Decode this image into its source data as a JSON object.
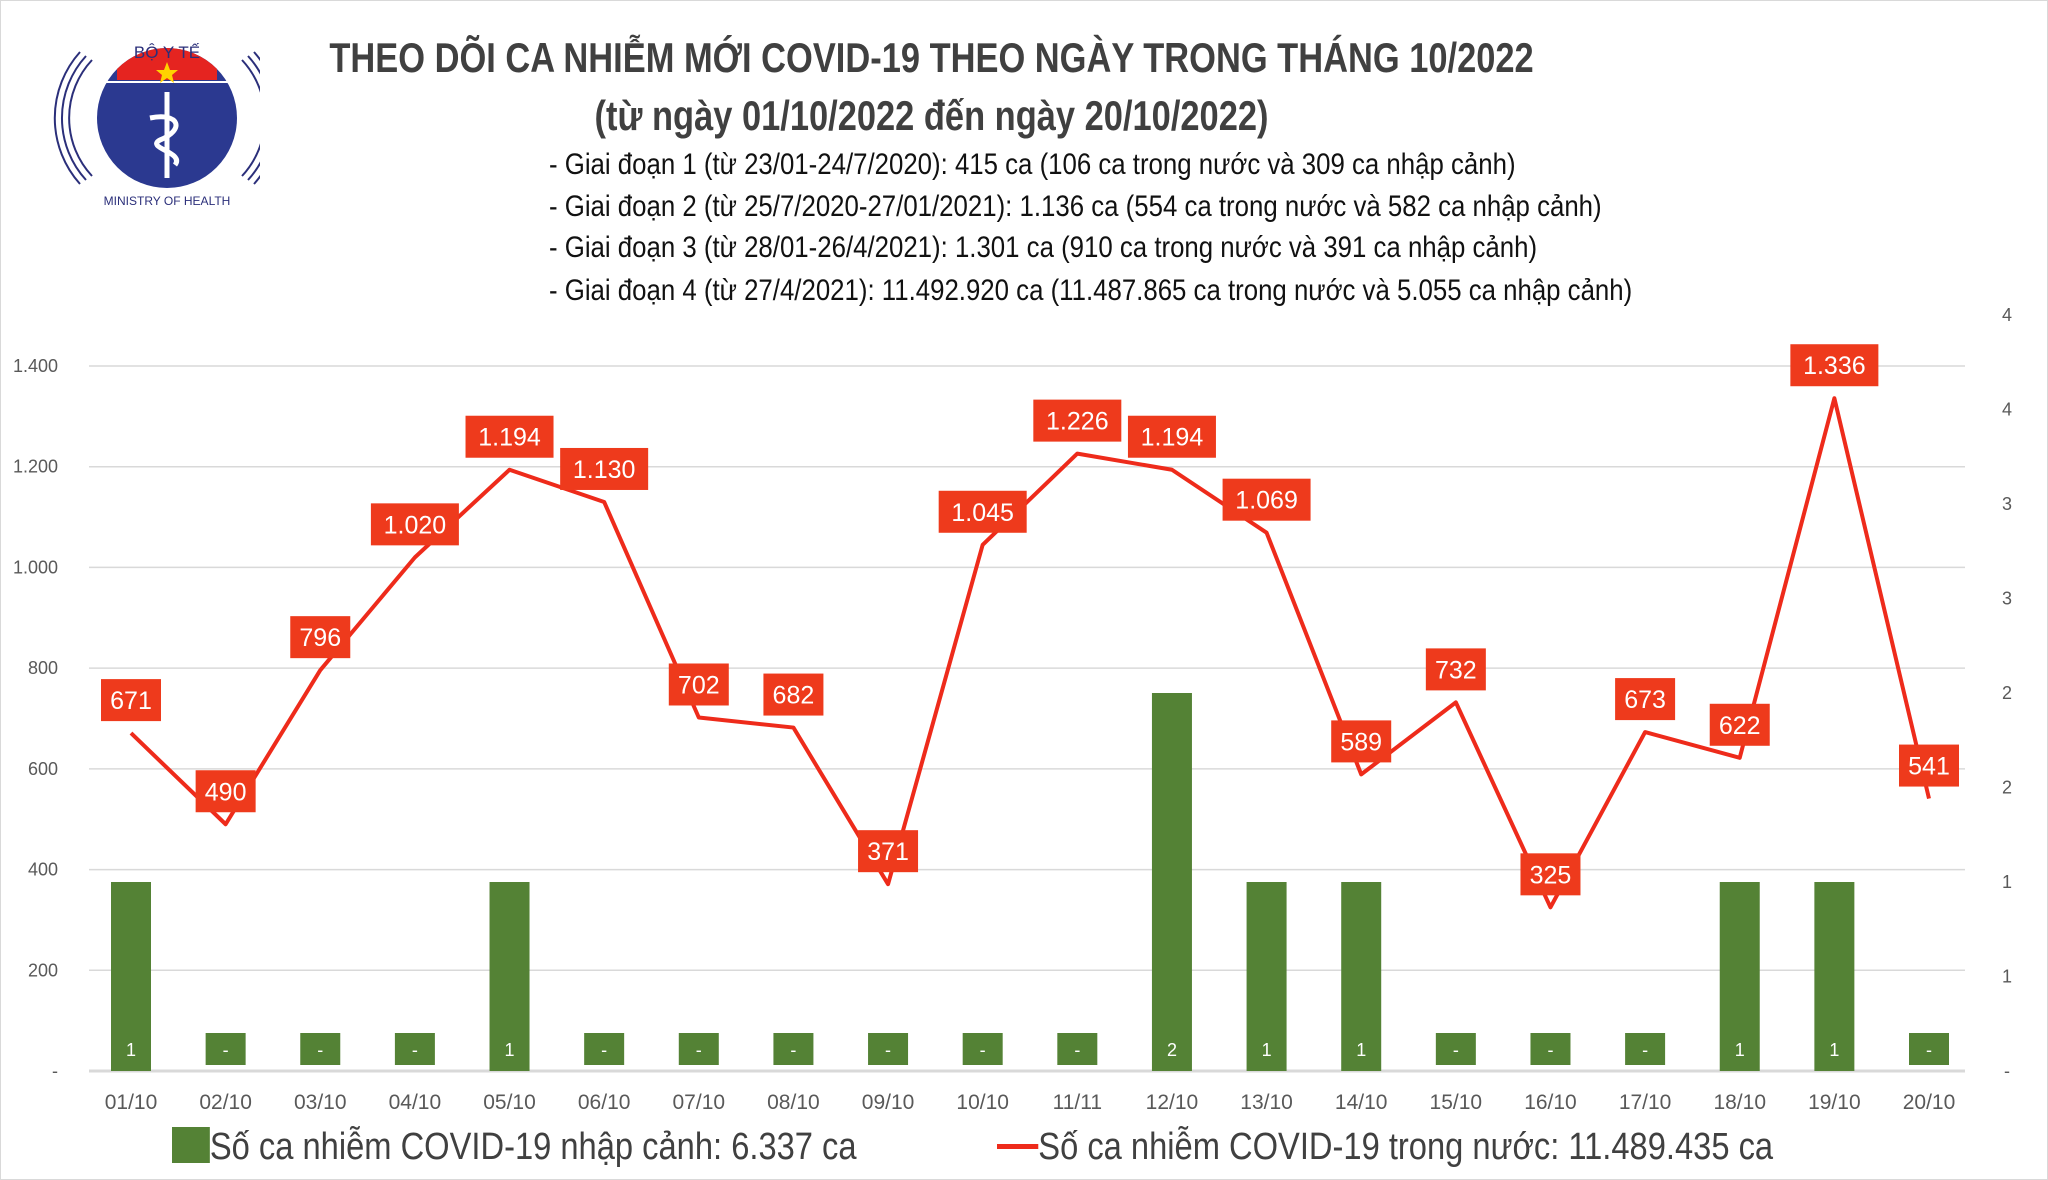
{
  "logo": {
    "top_text": "BỘ Y TẾ",
    "bottom_text": "MINISTRY OF HEALTH"
  },
  "colors": {
    "bar": "#548235",
    "line": "#ee2b1b",
    "label_bg": "#ee3a1c",
    "grid": "#d9d9d9"
  },
  "chart_data": {
    "type": "bar+line",
    "title": "THEO DÕI CA NHIỄM MỚI COVID-19 THEO NGÀY TRONG THÁNG 10/2022",
    "subtitle": "(từ ngày 01/10/2022 đến ngày 20/10/2022)",
    "notes": [
      "- Giai đoạn 1 (từ 23/01-24/7/2020): 415 ca (106 ca trong nước và 309 ca nhập cảnh)",
      "- Giai đoạn 2 (từ 25/7/2020-27/01/2021): 1.136 ca (554 ca trong nước và 582 ca nhập cảnh)",
      "- Giai đoạn 3 (từ 28/01-26/4/2021): 1.301 ca (910 ca trong nước và 391 ca nhập cảnh)",
      "- Giai đoạn 4 (từ 27/4/2021): 11.492.920 ca (11.487.865 ca trong nước và 5.055 ca nhập cảnh)"
    ],
    "categories": [
      "01/10",
      "02/10",
      "03/10",
      "04/10",
      "05/10",
      "06/10",
      "07/10",
      "08/10",
      "09/10",
      "10/10",
      "11/11",
      "12/10",
      "13/10",
      "14/10",
      "15/10",
      "16/10",
      "17/10",
      "18/10",
      "19/10",
      "20/10"
    ],
    "series": [
      {
        "name": "Số ca nhiễm COVID-19 nhập cảnh: 6.337 ca",
        "type": "bar",
        "axis": "right",
        "values": [
          1,
          0,
          0,
          0,
          1,
          0,
          0,
          0,
          0,
          0,
          0,
          2,
          1,
          1,
          0,
          0,
          0,
          1,
          1,
          0
        ],
        "labels": [
          "1",
          "-",
          "-",
          "-",
          "1",
          "-",
          "-",
          "-",
          "-",
          "-",
          "-",
          "2",
          "1",
          "1",
          "-",
          "-",
          "-",
          "1",
          "1",
          "-"
        ]
      },
      {
        "name": "Số ca nhiễm COVID-19 trong nước: 11.489.435 ca",
        "type": "line",
        "axis": "left",
        "values": [
          671,
          490,
          796,
          1020,
          1194,
          1130,
          702,
          682,
          371,
          1045,
          1226,
          1194,
          1069,
          589,
          732,
          325,
          673,
          622,
          1336,
          541
        ],
        "labels": [
          "671",
          "490",
          "796",
          "1.020",
          "1.194",
          "1.130",
          "702",
          "682",
          "371",
          "1.045",
          "1.226",
          "1.194",
          "1.069",
          "589",
          "732",
          "325",
          "673",
          "622",
          "1.336",
          "541"
        ]
      }
    ],
    "y_left": {
      "range": [
        0,
        1400
      ],
      "ticks": [
        0,
        200,
        400,
        600,
        800,
        1000,
        1200,
        1400
      ],
      "tick_labels": [
        "-",
        "200",
        "400",
        "600",
        "800",
        "1.000",
        "1.200",
        "1.400"
      ]
    },
    "y_right": {
      "range": [
        0,
        4
      ],
      "ticks": [
        0,
        0.5,
        1,
        1.5,
        2,
        2.5,
        3,
        3.5,
        4
      ],
      "tick_labels": [
        "-",
        "1",
        "1",
        "2",
        "2",
        "3",
        "3",
        "4",
        "4"
      ]
    },
    "grid": true,
    "legend": "bottom"
  }
}
